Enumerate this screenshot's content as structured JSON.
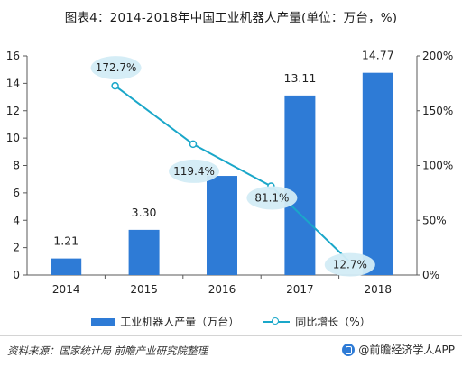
{
  "title": "图表4：2014-2018年中国工业机器人产量(单位：万台，%)",
  "chart_data": {
    "type": "bar",
    "categories": [
      "2014",
      "2015",
      "2016",
      "2017",
      "2018"
    ],
    "series": [
      {
        "name": "工业机器人产量（万台）",
        "type": "bar",
        "axis": "left",
        "values": [
          1.21,
          3.3,
          7.24,
          13.11,
          14.77
        ],
        "labels": [
          "1.21",
          "3.30",
          "",
          "13.11",
          "14.77"
        ]
      },
      {
        "name": "同比增长（%）",
        "type": "line",
        "axis": "right",
        "values": [
          null,
          172.7,
          119.4,
          81.1,
          12.7
        ],
        "labels": [
          "",
          "172.7%",
          "119.4%",
          "81.1%",
          "12.7%"
        ]
      }
    ],
    "y_left": {
      "min": 0,
      "max": 16,
      "ticks": [
        "0",
        "2",
        "4",
        "6",
        "8",
        "10",
        "12",
        "14",
        "16"
      ]
    },
    "y_right": {
      "min": 0,
      "max": 200,
      "ticks": [
        "0%",
        "50%",
        "100%",
        "150%",
        "200%"
      ]
    },
    "grid": false,
    "legend_position": "bottom"
  },
  "legend": {
    "bar_label": "工业机器人产量（万台）",
    "line_label": "同比增长（%）"
  },
  "footer": {
    "source": "资料来源：国家统计局 前瞻产业研究院整理",
    "brand": "@前瞻经济学人APP"
  },
  "colors": {
    "bar": "#2e7bd6",
    "line": "#1aa7c9",
    "bubble": "#d3ecf6",
    "axis": "#595959"
  }
}
